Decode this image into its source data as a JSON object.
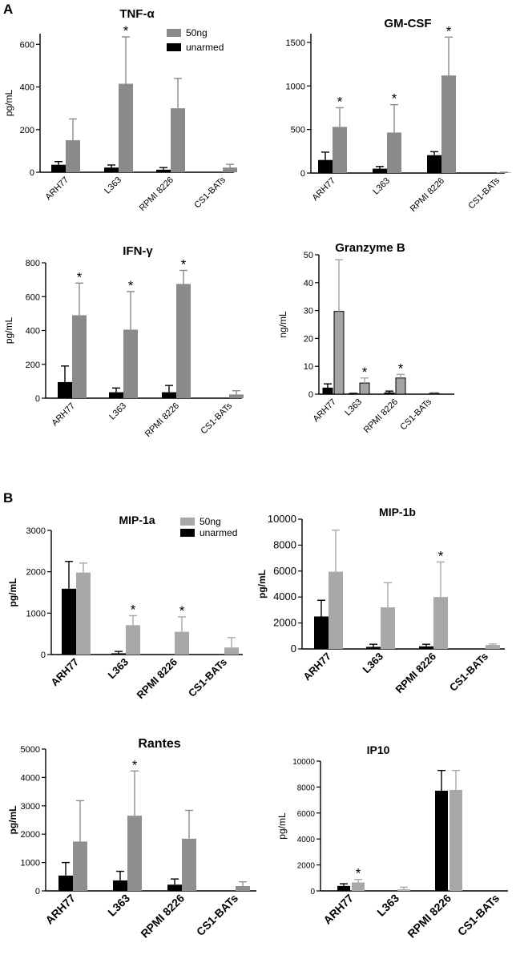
{
  "panels": [
    {
      "letter": "A"
    },
    {
      "letter": "B"
    }
  ],
  "colors": {
    "unarmed": "#000000",
    "armed_A": "#8a8a8a",
    "armed_B1": "#a8a8a8",
    "armed_B2": "#8f8f8f",
    "gzb": "#a4a4a4"
  },
  "chart_data": [
    {
      "id": "tnf",
      "type": "bar",
      "title": "TNF-α",
      "ylabel": "pg/mL",
      "categories": [
        "ARH77",
        "L363",
        "RPMI 8226",
        "CS1-BATs"
      ],
      "ylim": [
        0,
        650
      ],
      "yticks": [
        0,
        200,
        400,
        600
      ],
      "legend": [
        "50ng",
        "unarmed"
      ],
      "legend_placement": "top-right",
      "series": [
        {
          "name": "unarmed",
          "values": [
            35,
            22,
            12,
            null
          ],
          "errors": [
            15,
            12,
            10,
            null
          ]
        },
        {
          "name": "50ng",
          "values": [
            150,
            415,
            300,
            22
          ],
          "errors": [
            100,
            220,
            140,
            15
          ]
        }
      ],
      "stars": [
        {
          "category": 1,
          "series": 1,
          "label": "*"
        }
      ]
    },
    {
      "id": "gmcsf",
      "type": "bar",
      "title": "GM-CSF",
      "ylabel": "",
      "categories": [
        "ARH77",
        "L363",
        "RPMI 8226",
        "CS1-BATs"
      ],
      "ylim": [
        0,
        1600
      ],
      "yticks": [
        0,
        500,
        1000,
        1500
      ],
      "series": [
        {
          "name": "unarmed",
          "values": [
            150,
            50,
            205,
            null
          ],
          "errors": [
            90,
            25,
            40,
            null
          ]
        },
        {
          "name": "50ng",
          "values": [
            530,
            465,
            1120,
            5
          ],
          "errors": [
            220,
            320,
            440,
            5
          ]
        }
      ],
      "stars": [
        {
          "category": 0,
          "series": 1,
          "label": "*"
        },
        {
          "category": 1,
          "series": 1,
          "label": "*"
        },
        {
          "category": 2,
          "series": 1,
          "label": "*"
        }
      ]
    },
    {
      "id": "ifng",
      "type": "bar",
      "title": "IFN-γ",
      "ylabel": "pg/mL",
      "categories": [
        "ARH77",
        "L363",
        "RPMI 8226",
        "CS1-BATs"
      ],
      "ylim": [
        0,
        800
      ],
      "yticks": [
        0,
        200,
        400,
        600,
        800
      ],
      "series": [
        {
          "name": "unarmed",
          "values": [
            95,
            35,
            35,
            null
          ],
          "errors": [
            95,
            25,
            40,
            null
          ]
        },
        {
          "name": "50ng",
          "values": [
            490,
            405,
            675,
            22
          ],
          "errors": [
            190,
            225,
            80,
            22
          ]
        }
      ],
      "stars": [
        {
          "category": 0,
          "series": 1,
          "label": "*"
        },
        {
          "category": 1,
          "series": 1,
          "label": "*"
        },
        {
          "category": 2,
          "series": 1,
          "label": "*"
        }
      ]
    },
    {
      "id": "gzb",
      "type": "bar",
      "title": "Granzyme B",
      "ylabel": "ng/mL",
      "categories": [
        "ARH77",
        "L363",
        "RPMI 8226",
        "CS1-BATs"
      ],
      "ylim": [
        0,
        50
      ],
      "yticks": [
        0,
        10,
        20,
        30,
        40,
        50
      ],
      "series": [
        {
          "name": "unarmed",
          "values": [
            2.2,
            0.1,
            0.5,
            null
          ],
          "errors": [
            1.5,
            0.2,
            0.6,
            null
          ]
        },
        {
          "name": "50ng",
          "values": [
            29.7,
            4.0,
            5.8,
            0.3
          ],
          "errors": [
            18.5,
            1.8,
            1.3,
            0.3
          ]
        }
      ],
      "stars": [
        {
          "category": 1,
          "series": 1,
          "label": "*"
        },
        {
          "category": 2,
          "series": 1,
          "label": "*"
        }
      ]
    },
    {
      "id": "mip1a",
      "type": "bar",
      "title": "MIP-1a",
      "ylabel": "pg/mL",
      "categories": [
        "ARH77",
        "L363",
        "RPMI 8226",
        "CS1-BATs"
      ],
      "ylim": [
        0,
        3000
      ],
      "yticks": [
        0,
        1000,
        2000,
        3000
      ],
      "legend": [
        "50ng",
        "unarmed"
      ],
      "legend_placement": "top-right",
      "series": [
        {
          "name": "unarmed",
          "values": [
            1590,
            30,
            null,
            null
          ],
          "errors": [
            660,
            45,
            null,
            null
          ]
        },
        {
          "name": "50ng",
          "values": [
            1980,
            710,
            550,
            170
          ],
          "errors": [
            230,
            230,
            360,
            240
          ]
        }
      ],
      "stars": [
        {
          "category": 1,
          "series": 1,
          "label": "*"
        },
        {
          "category": 2,
          "series": 1,
          "label": "*"
        }
      ]
    },
    {
      "id": "mip1b",
      "type": "bar",
      "title": "MIP-1b",
      "ylabel": "pg/mL",
      "categories": [
        "ARH77",
        "L363",
        "RPMI 8226",
        "CS1-BATs"
      ],
      "ylim": [
        0,
        10000
      ],
      "yticks": [
        0,
        2000,
        4000,
        6000,
        8000,
        10000
      ],
      "series": [
        {
          "name": "unarmed",
          "values": [
            2500,
            160,
            200,
            null
          ],
          "errors": [
            1250,
            200,
            160,
            null
          ]
        },
        {
          "name": "50ng",
          "values": [
            5950,
            3200,
            4000,
            300
          ],
          "errors": [
            3200,
            1900,
            2700,
            80
          ]
        }
      ],
      "stars": [
        {
          "category": 2,
          "series": 1,
          "label": "*"
        }
      ]
    },
    {
      "id": "rantes",
      "type": "bar",
      "title": "Rantes",
      "ylabel": "pg/mL",
      "categories": [
        "ARH77",
        "L363",
        "RPMI 8226",
        "CS1-BATs"
      ],
      "ylim": [
        0,
        5000
      ],
      "yticks": [
        0,
        1000,
        2000,
        3000,
        4000,
        5000
      ],
      "series": [
        {
          "name": "unarmed",
          "values": [
            540,
            370,
            220,
            null
          ],
          "errors": [
            460,
            320,
            200,
            null
          ]
        },
        {
          "name": "50ng",
          "values": [
            1740,
            2650,
            1840,
            170
          ],
          "errors": [
            1440,
            1580,
            1000,
            150
          ]
        }
      ],
      "stars": [
        {
          "category": 1,
          "series": 1,
          "label": "*"
        }
      ]
    },
    {
      "id": "ip10",
      "type": "bar",
      "title": "IP10",
      "ylabel": "pg/mL",
      "categories": [
        "ARH77",
        "L363",
        "RPMI 8226",
        "CS1-BATs"
      ],
      "ylim": [
        0,
        10000
      ],
      "yticks": [
        0,
        2000,
        4000,
        6000,
        8000,
        10000
      ],
      "series": [
        {
          "name": "unarmed",
          "values": [
            380,
            null,
            7720,
            null
          ],
          "errors": [
            170,
            null,
            1560,
            null
          ]
        },
        {
          "name": "50ng",
          "values": [
            650,
            120,
            7780,
            null
          ],
          "errors": [
            230,
            160,
            1500,
            null
          ]
        }
      ],
      "stars": [
        {
          "category": 0,
          "series": 1,
          "label": "*"
        }
      ]
    }
  ]
}
